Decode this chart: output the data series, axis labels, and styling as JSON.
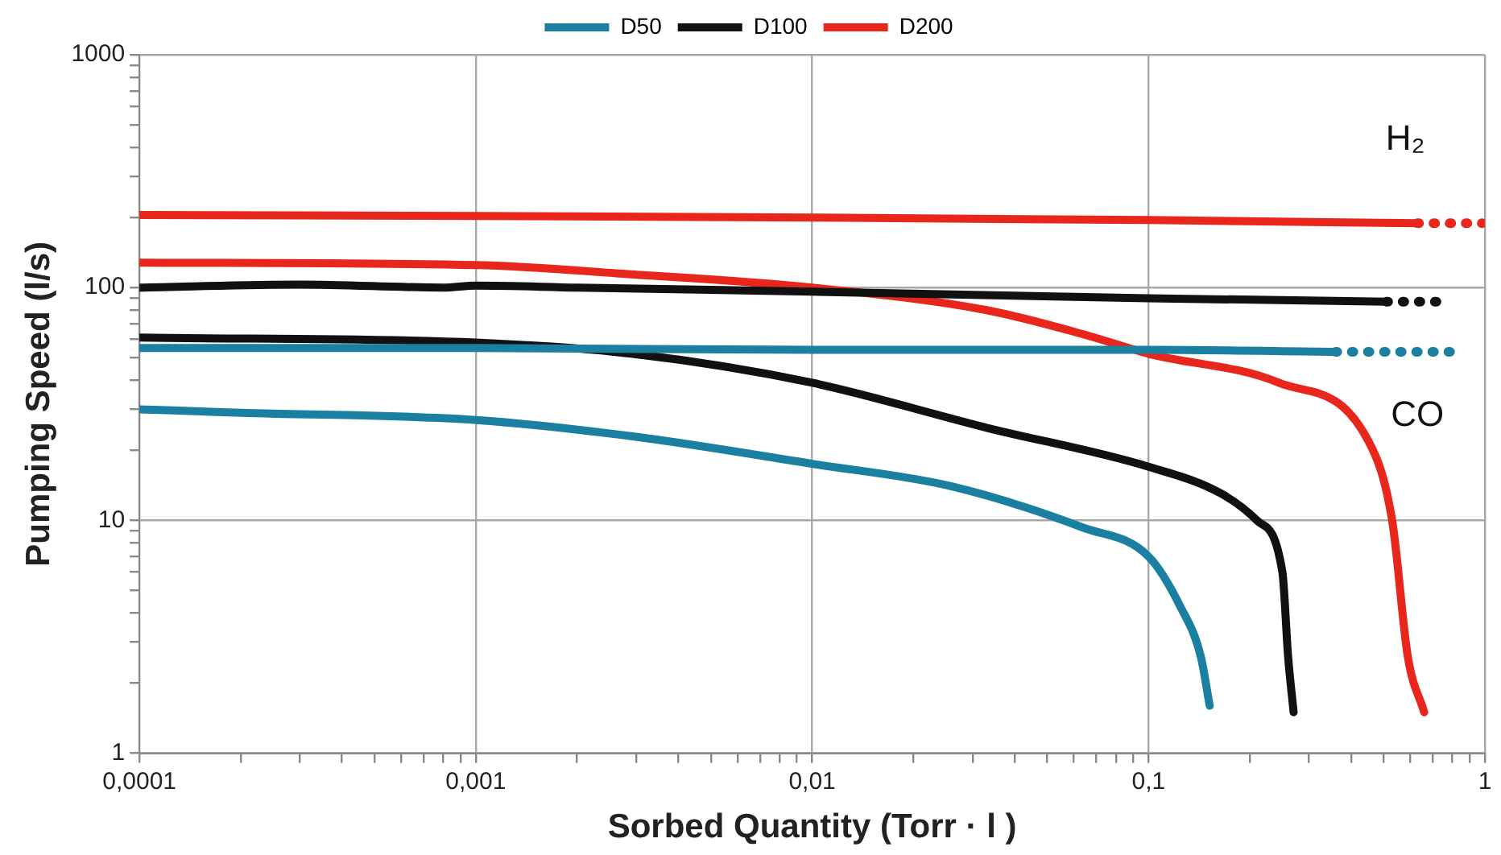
{
  "chart_data": {
    "type": "line",
    "xlabel": "Sorbed Quantity (Torr · l )",
    "ylabel": "Pumping Speed (l/s)",
    "log": "xy",
    "grid": true,
    "legend": "top",
    "marker": "none",
    "xlim": [
      0.0001,
      1
    ],
    "ylim": [
      1,
      1000
    ],
    "xticks": [
      {
        "value": 0.0001,
        "label": "0,0001"
      },
      {
        "value": 0.0002,
        "label": null
      },
      {
        "value": 0.0003,
        "label": null
      },
      {
        "value": 0.0004,
        "label": null
      },
      {
        "value": 0.0005,
        "label": null
      },
      {
        "value": 0.0006,
        "label": null
      },
      {
        "value": 0.0007,
        "label": null
      },
      {
        "value": 0.0008,
        "label": null
      },
      {
        "value": 0.0009,
        "label": null
      },
      {
        "value": 0.001,
        "label": "0,001"
      },
      {
        "value": 0.002,
        "label": null
      },
      {
        "value": 0.003,
        "label": null
      },
      {
        "value": 0.004,
        "label": null
      },
      {
        "value": 0.005,
        "label": null
      },
      {
        "value": 0.006,
        "label": null
      },
      {
        "value": 0.007,
        "label": null
      },
      {
        "value": 0.008,
        "label": null
      },
      {
        "value": 0.009,
        "label": null
      },
      {
        "value": 0.01,
        "label": "0,01"
      },
      {
        "value": 0.02,
        "label": null
      },
      {
        "value": 0.03,
        "label": null
      },
      {
        "value": 0.04,
        "label": null
      },
      {
        "value": 0.05,
        "label": null
      },
      {
        "value": 0.06,
        "label": null
      },
      {
        "value": 0.07,
        "label": null
      },
      {
        "value": 0.08,
        "label": null
      },
      {
        "value": 0.09,
        "label": null
      },
      {
        "value": 0.1,
        "label": "0,1"
      },
      {
        "value": 0.2,
        "label": null
      },
      {
        "value": 0.3,
        "label": null
      },
      {
        "value": 0.4,
        "label": null
      },
      {
        "value": 0.5,
        "label": null
      },
      {
        "value": 0.6,
        "label": null
      },
      {
        "value": 0.7,
        "label": null
      },
      {
        "value": 0.8,
        "label": null
      },
      {
        "value": 0.9,
        "label": null
      },
      1
    ],
    "yticks": [
      1,
      {
        "value": 2,
        "label": null
      },
      {
        "value": 3,
        "label": null
      },
      {
        "value": 4,
        "label": null
      },
      {
        "value": 5,
        "label": null
      },
      {
        "value": 6,
        "label": null
      },
      {
        "value": 7,
        "label": null
      },
      {
        "value": 8,
        "label": null
      },
      {
        "value": 9,
        "label": null
      },
      10,
      {
        "value": 20,
        "label": null
      },
      {
        "value": 30,
        "label": null
      },
      {
        "value": 40,
        "label": null
      },
      {
        "value": 50,
        "label": null
      },
      {
        "value": 60,
        "label": null
      },
      {
        "value": 70,
        "label": null
      },
      {
        "value": 80,
        "label": null
      },
      {
        "value": 90,
        "label": null
      },
      100,
      {
        "value": 200,
        "label": null
      },
      {
        "value": 300,
        "label": null
      },
      {
        "value": 400,
        "label": null
      },
      {
        "value": 500,
        "label": null
      },
      {
        "value": 600,
        "label": null
      },
      {
        "value": 700,
        "label": null
      },
      {
        "value": 800,
        "label": null
      },
      {
        "value": 900,
        "label": null
      },
      1000
    ],
    "series": [
      {
        "name": "D50",
        "color": "#1a7fa0",
        "x": [
          0.0001,
          0.001,
          0.01,
          0.1,
          0.36
        ],
        "values": [
          55,
          55,
          54,
          54,
          53
        ]
      },
      {
        "name": "D100",
        "color": "#111111",
        "x": [
          0.0001,
          0.0003,
          0.0008,
          0.001,
          0.002,
          0.01,
          0.1,
          0.51
        ],
        "values": [
          100,
          103,
          100,
          102,
          100,
          96,
          90,
          87
        ]
      },
      {
        "name": "D200",
        "color": "#e8261c",
        "x": [
          0.0001,
          0.001,
          0.01,
          0.1,
          0.63
        ],
        "values": [
          205,
          203,
          200,
          195,
          189
        ]
      },
      {
        "color": "#1a7fa0",
        "line_style": "dotted",
        "x": [
          0.36,
          0.82
        ],
        "values": [
          53,
          53
        ]
      },
      {
        "color": "#111111",
        "line_style": "dotted",
        "x": [
          0.51,
          0.78
        ],
        "values": [
          87,
          87
        ]
      },
      {
        "color": "#e8261c",
        "line_style": "dotted",
        "x": [
          0.63,
          0.98
        ],
        "values": [
          189,
          189
        ]
      },
      {
        "color": "#1a7fa0",
        "x": [
          0.0001,
          0.0002,
          0.001,
          0.0029,
          0.01,
          0.026,
          0.064,
          0.1,
          0.124,
          0.143,
          0.152
        ],
        "values": [
          30,
          29,
          27,
          23,
          17.5,
          14,
          9.3,
          7,
          4.3,
          2.6,
          1.6
        ]
      },
      {
        "color": "#111111",
        "x": [
          0.0001,
          0.001,
          0.0029,
          0.01,
          0.033,
          0.1,
          0.165,
          0.21,
          0.25,
          0.26,
          0.27
        ],
        "values": [
          61,
          58,
          52,
          39,
          25,
          17,
          13,
          10,
          6,
          2.6,
          1.5
        ]
      },
      {
        "color": "#e8261c",
        "x": [
          0.0001,
          0.001,
          0.0029,
          0.01,
          0.033,
          0.064,
          0.1,
          0.244,
          0.45,
          0.53,
          0.59,
          0.66
        ],
        "values": [
          128,
          125,
          114,
          100,
          80,
          63,
          52,
          39,
          22,
          10,
          2.6,
          1.5
        ]
      }
    ],
    "annotations": [
      "H₂",
      "CO"
    ]
  }
}
